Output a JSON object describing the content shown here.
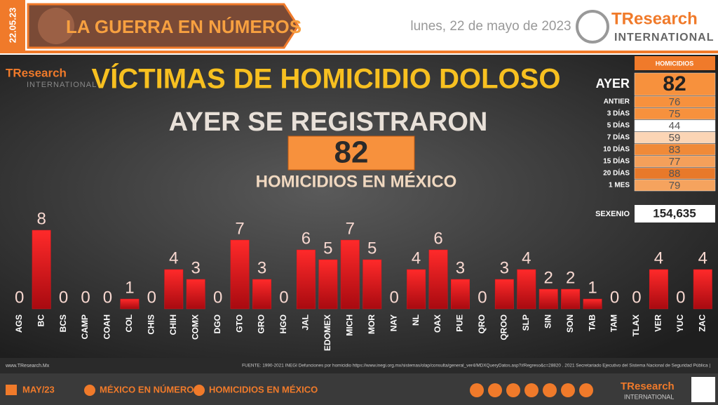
{
  "header": {
    "date_code": "22.05.23",
    "banner": "LA GUERRA EN NÚMEROS",
    "date": "lunes, 22 de mayo de 2023",
    "logo_main": "TResearch",
    "logo_sub": "INTERNATIONAL"
  },
  "chart_data": {
    "type": "bar",
    "title": "VÍCTIMAS DE HOMICIDIO DOLOSO",
    "subtitle": "AYER SE REGISTRARON",
    "total": 82,
    "total_caption": "HOMICIDIOS EN MÉXICO",
    "categories": [
      "AGS",
      "BC",
      "BCS",
      "CAMP",
      "COAH",
      "COL",
      "CHIS",
      "CHIH",
      "COMX",
      "DGO",
      "GTO",
      "GRO",
      "HGO",
      "JAL",
      "EDOMEX",
      "MICH",
      "MOR",
      "NAY",
      "NL",
      "OAX",
      "PUE",
      "QRO",
      "QROO",
      "SLP",
      "SIN",
      "SON",
      "TAB",
      "TAM",
      "TLAX",
      "VER",
      "YUC",
      "ZAC"
    ],
    "values": [
      0,
      8,
      0,
      0,
      0,
      1,
      0,
      4,
      3,
      0,
      7,
      3,
      0,
      6,
      5,
      7,
      5,
      0,
      4,
      6,
      3,
      0,
      3,
      4,
      2,
      2,
      1,
      0,
      0,
      4,
      0,
      4
    ],
    "color": "#e0141c",
    "ylim": [
      0,
      8
    ]
  },
  "summary": {
    "header": "HOMICIDIOS",
    "rows": [
      {
        "label": "AYER",
        "value": 82,
        "color": "#f7913d"
      },
      {
        "label": "ANTIER",
        "value": 76,
        "color": "#f7913d"
      },
      {
        "label": "3 DÍAS",
        "value": 75,
        "color": "#f7913d"
      },
      {
        "label": "5 DÍAS",
        "value": 44,
        "color": "#ffffff"
      },
      {
        "label": "7 DÍAS",
        "value": 59,
        "color": "#fbd5b5"
      },
      {
        "label": "10 DÍAS",
        "value": 83,
        "color": "#f08a38"
      },
      {
        "label": "15 DÍAS",
        "value": 77,
        "color": "#f5a05a"
      },
      {
        "label": "20 DÍAS",
        "value": 88,
        "color": "#e8792a"
      },
      {
        "label": "1 MES",
        "value": 79,
        "color": "#f5a35e"
      }
    ],
    "sexenio_label": "SEXENIO",
    "sexenio_value": "154,635"
  },
  "footer": {
    "site": "www.TResearch.Mx",
    "source": "FUENTE: 1990-2021 INEGI Defunciones por homicidio https://www.inegi.org.mx/sistemas/olap/consulta/general_ver4/MDXQueryDatos.asp?#Regreso&c=28820 . 2021 Secretariado Ejecutivo del Sistema Nacional de Seguridad Pública |",
    "month": "MAY/23",
    "link1": "MÉXICO EN NÚMEROS",
    "link2": "HOMICIDIOS EN MÉXICO"
  }
}
